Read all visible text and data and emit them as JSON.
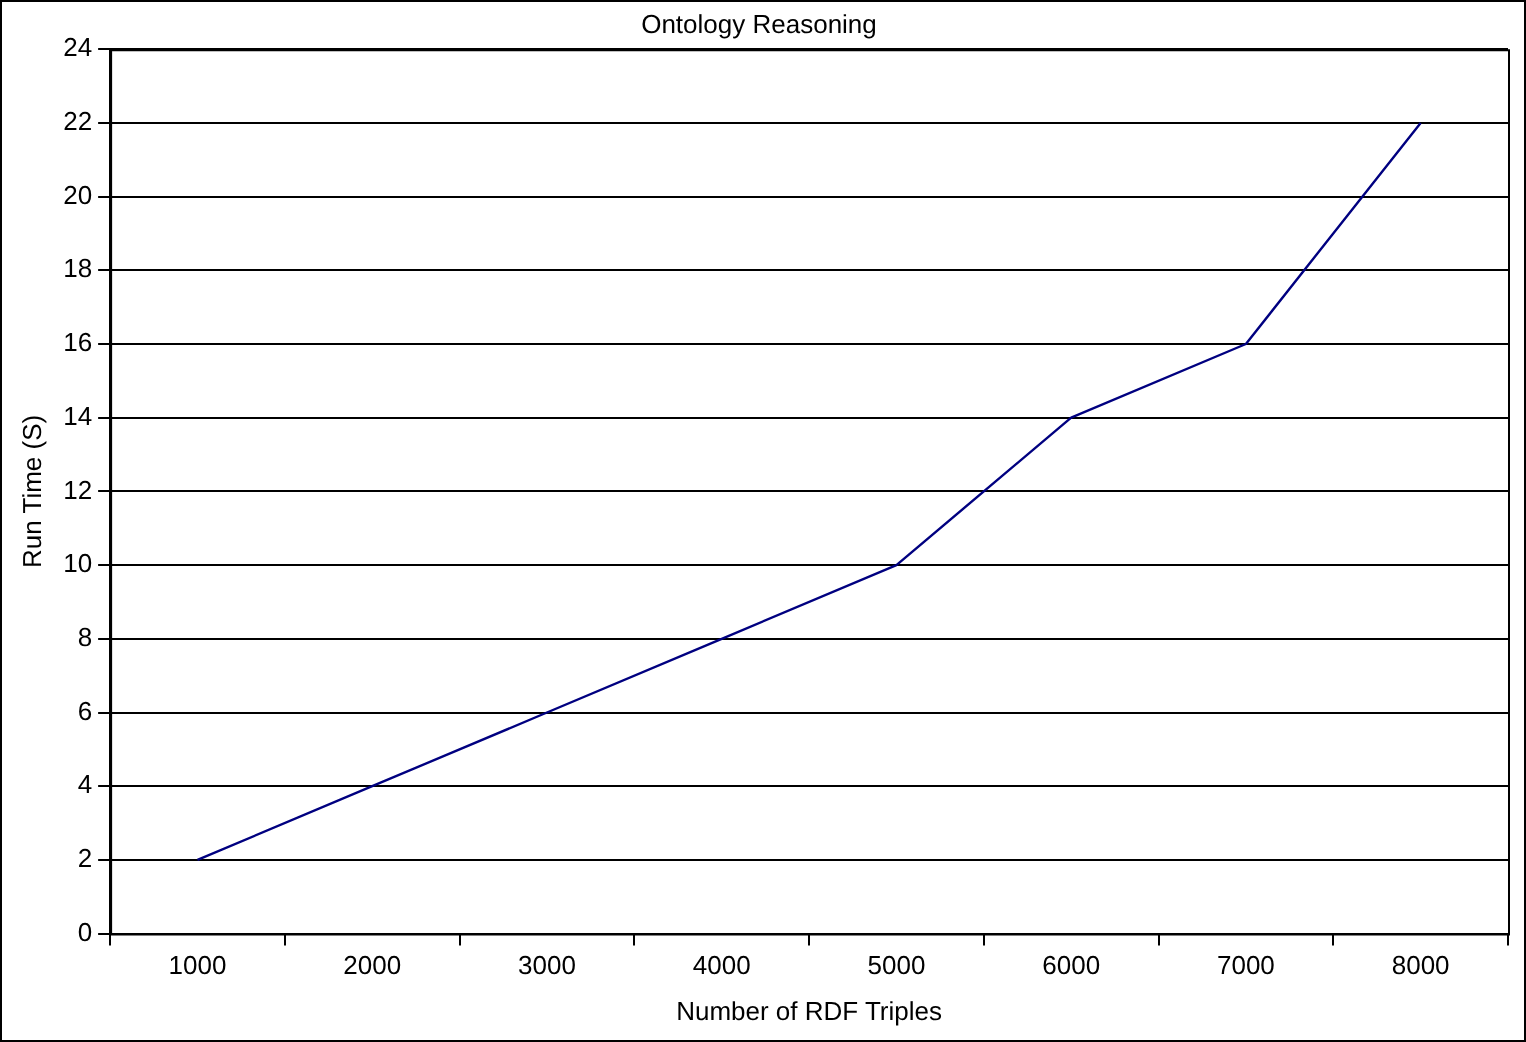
{
  "chart_data": {
    "type": "line",
    "title": "Ontology Reasoning",
    "xlabel": "Number of RDF Triples",
    "ylabel": "Run Time (S)",
    "categories": [
      "1000",
      "2000",
      "3000",
      "4000",
      "5000",
      "6000",
      "7000",
      "8000"
    ],
    "series": [
      {
        "color": "#000080",
        "values": [
          2,
          4,
          6,
          8,
          10,
          14,
          16,
          22
        ]
      }
    ],
    "ylim": [
      0,
      24
    ],
    "yticks": [
      0,
      2,
      4,
      6,
      8,
      10,
      12,
      14,
      16,
      18,
      20,
      22,
      24
    ],
    "grid": "y",
    "legend": false,
    "marker": "none",
    "line_style": "solid"
  }
}
